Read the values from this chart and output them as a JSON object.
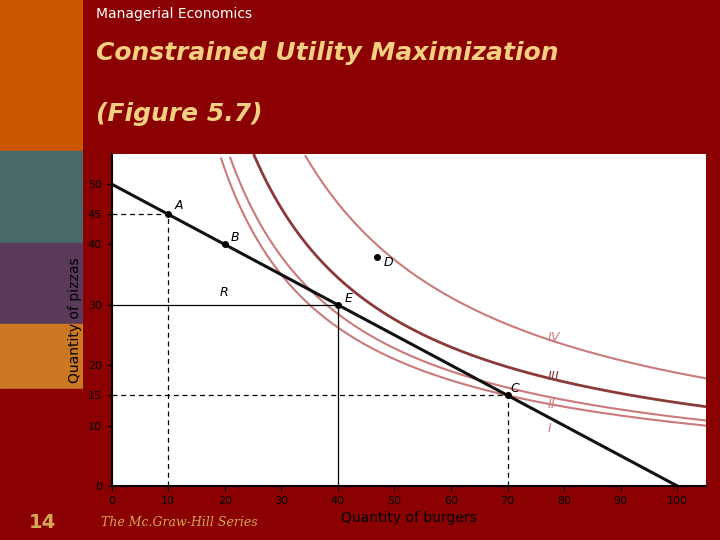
{
  "title_main": "Managerial Economics",
  "title_sub": "Constrained Utility Maximization\n(Figure 5.7)",
  "footer": "The Mc.Graw-Hill Series",
  "xlabel": "Quantity of burgers",
  "ylabel": "Quantity of pizzas",
  "xlim": [
    0,
    105
  ],
  "ylim": [
    0,
    55
  ],
  "xticks": [
    0,
    10,
    20,
    30,
    40,
    50,
    60,
    70,
    80,
    90,
    100
  ],
  "yticks": [
    0,
    10,
    15,
    20,
    30,
    40,
    45,
    50
  ],
  "budget_line": {
    "x": [
      0,
      100
    ],
    "y": [
      50,
      0
    ]
  },
  "point_A": [
    10,
    45
  ],
  "point_B": [
    20,
    40
  ],
  "point_R": [
    23,
    31
  ],
  "point_E": [
    40,
    30
  ],
  "point_D": [
    47,
    38
  ],
  "point_C": [
    70,
    15
  ],
  "k_I": 1050,
  "k_II": 1140,
  "k_III": 1380,
  "k_IV": 1873,
  "curve_color_outer": "#c97a7a",
  "curve_color_III": "#8b3a3a",
  "budget_line_color": "#111111",
  "header_bg": "#8b0000",
  "header_text_color": "#ffffff",
  "header_subtitle_color": "#f5d080",
  "footer_bg": "#8b0000",
  "footer_text_color": "#d4a855",
  "plot_bg": "#ffffff"
}
